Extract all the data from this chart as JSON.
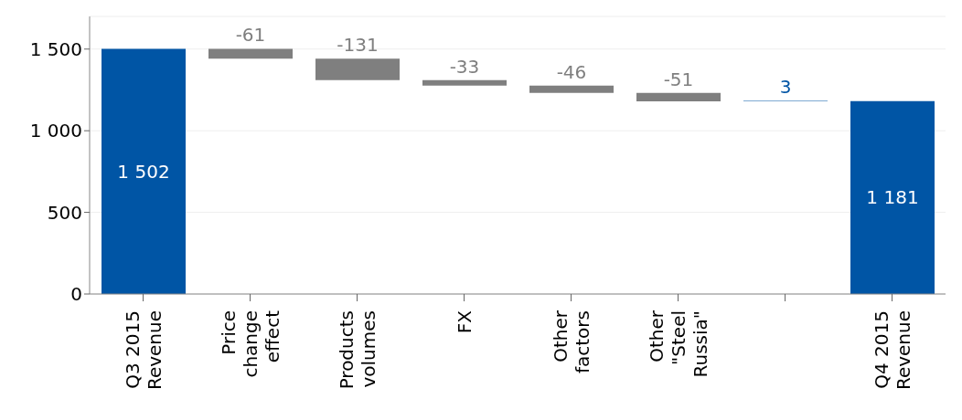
{
  "chart_data": {
    "type": "bar",
    "categories": [
      "Q3 2015 Revenue",
      "Price change effect",
      "Products volumes",
      "FX",
      "Other factors",
      "Other \"Steel Russia\"",
      null,
      "Q4 2015 Revenue"
    ],
    "values": [
      1502,
      -61,
      -131,
      -33,
      -46,
      -51,
      3,
      1181
    ],
    "base": [
      0,
      1502,
      1441,
      1310,
      1277,
      1231,
      1180,
      0
    ],
    "colors": [
      "#0055a5",
      "#7f7f7f",
      "#7f7f7f",
      "#7f7f7f",
      "#7f7f7f",
      "#7f7f7f",
      "#0055a5",
      "#0055a5"
    ],
    "value_labels": [
      "1 502",
      "-61",
      "-131",
      "-33",
      "-46",
      "-51",
      "3",
      "1 181"
    ],
    "ylim": [
      0,
      1700
    ],
    "yticks": [
      0,
      500,
      {
        "value": 1000,
        "label": "1 000"
      },
      {
        "value": 1500,
        "label": "1 500"
      }
    ],
    "grid": "y"
  }
}
